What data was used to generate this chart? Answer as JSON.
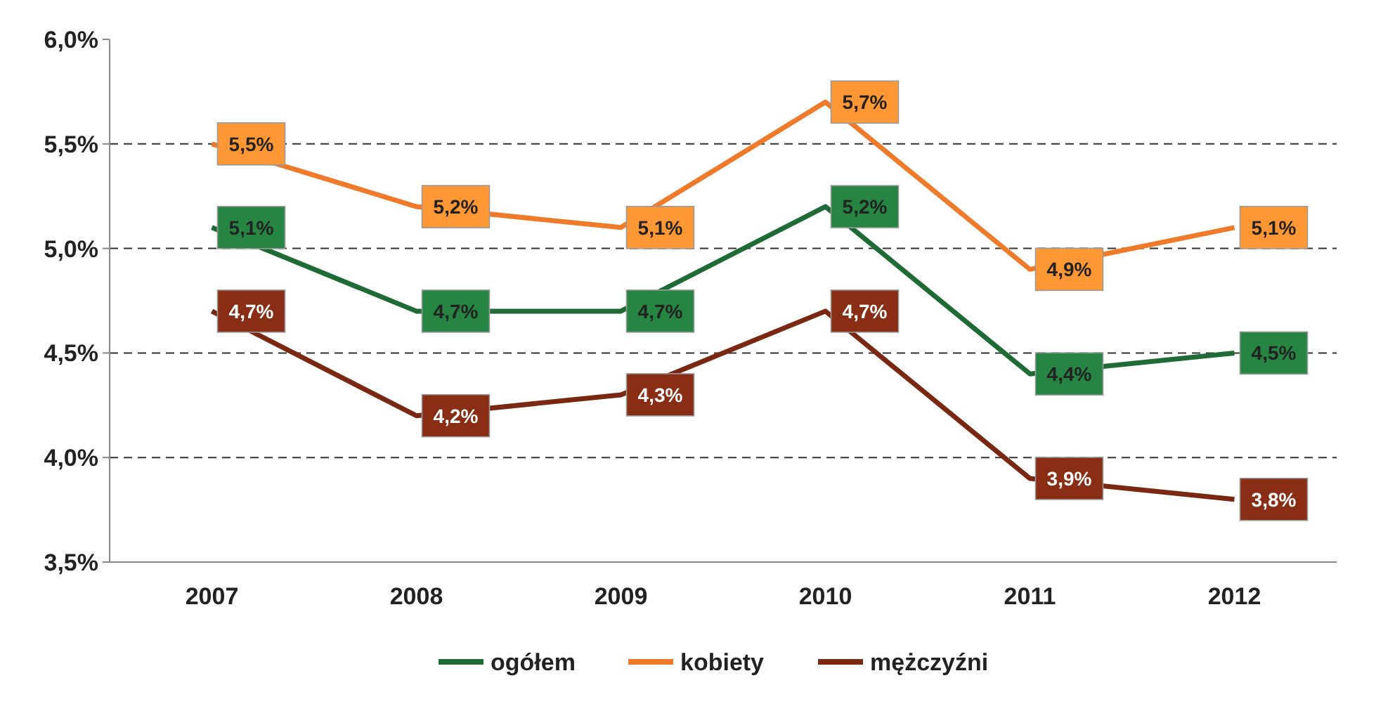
{
  "chart_data": {
    "type": "line",
    "categories": [
      "2007",
      "2008",
      "2009",
      "2010",
      "2011",
      "2012"
    ],
    "series": [
      {
        "name": "ogółem",
        "color": "#1f6b35",
        "values": [
          5.1,
          4.7,
          4.7,
          5.2,
          4.4,
          4.5
        ],
        "value_labels": [
          "5,1%",
          "4,7%",
          "4,7%",
          "5,2%",
          "4,4%",
          "4,5%"
        ]
      },
      {
        "name": "kobiety",
        "color": "#ef7a2a",
        "values": [
          5.5,
          5.2,
          5.1,
          5.7,
          4.9,
          5.1
        ],
        "value_labels": [
          "5,5%",
          "5,2%",
          "5,1%",
          "5,7%",
          "4,9%",
          "5,1%"
        ]
      },
      {
        "name": "mężczyźni",
        "color": "#7b2812",
        "values": [
          4.7,
          4.2,
          4.3,
          4.7,
          3.9,
          3.8
        ],
        "value_labels": [
          "4,7%",
          "4,2%",
          "4,3%",
          "4,7%",
          "3,9%",
          "3,8%"
        ]
      }
    ],
    "ylim": [
      3.5,
      6.0
    ],
    "yticks": [
      {
        "value": 3.5,
        "label": "3,5%"
      },
      {
        "value": 4.0,
        "label": "4,0%"
      },
      {
        "value": 4.5,
        "label": "4,5%"
      },
      {
        "value": 5.0,
        "label": "5,0%"
      },
      {
        "value": 5.5,
        "label": "5,5%"
      },
      {
        "value": 6.0,
        "label": "6,0%"
      }
    ],
    "grid": "y",
    "legend": "bottom",
    "line_style": "solid"
  }
}
